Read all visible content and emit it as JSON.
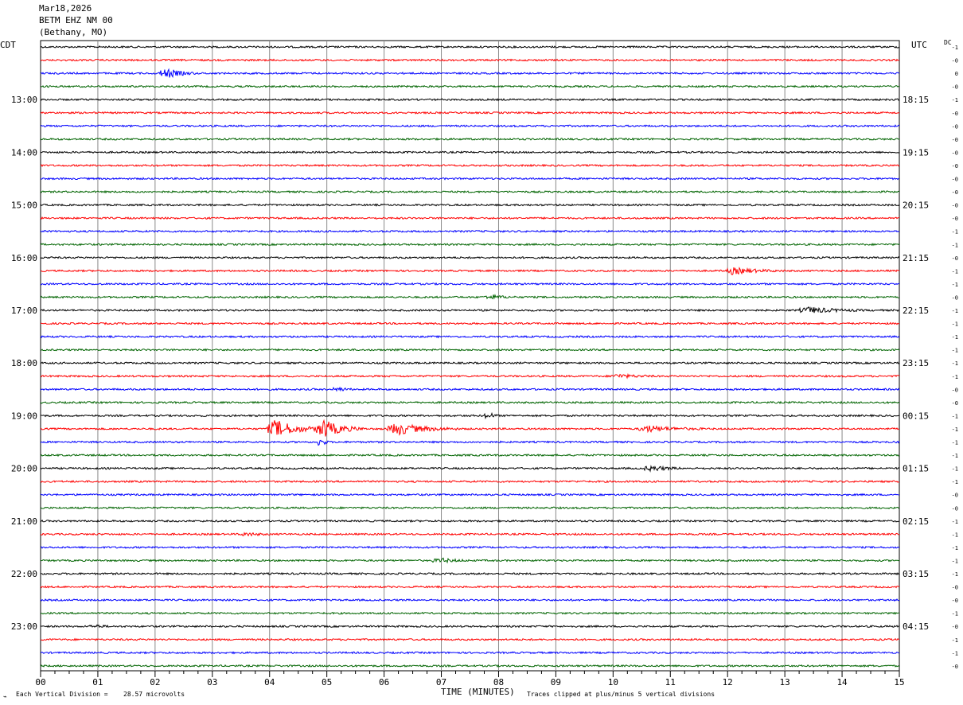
{
  "header": {
    "date": "Mar18,2026",
    "station": "BETM EHZ NM 00",
    "location": "(Bethany, MO)"
  },
  "left_tz": "CDT",
  "right_tz": "UTC",
  "dc_label": "DC",
  "chart_data": {
    "type": "line",
    "title": "",
    "xlabel": "TIME (MINUTES)",
    "ylabel": "",
    "xlim": [
      0,
      15
    ],
    "x_ticks": [
      "00",
      "01",
      "02",
      "03",
      "04",
      "05",
      "06",
      "07",
      "08",
      "09",
      "10",
      "11",
      "12",
      "13",
      "14",
      "15"
    ],
    "trace_minutes": 15,
    "trace_count": 48,
    "trace_colors": [
      "#000000",
      "#ff0000",
      "#0000ff",
      "#006400"
    ],
    "grid_vertical": true,
    "left_hour_labels": [
      "13:00",
      "14:00",
      "15:00",
      "16:00",
      "17:00",
      "18:00",
      "19:00",
      "20:00",
      "21:00",
      "22:00",
      "23:00"
    ],
    "right_hour_labels": [
      "18:15",
      "19:15",
      "20:15",
      "21:15",
      "22:15",
      "23:15",
      "00:15",
      "01:15",
      "02:15",
      "03:15",
      "04:15"
    ],
    "hour_label_first_trace": 4,
    "hour_label_every": 4,
    "dc_offsets": [
      "-1",
      "-0",
      "0",
      "-0",
      "-1",
      "-0",
      "-0",
      "-0",
      "-0",
      "-0",
      "-0",
      "-0",
      "-0",
      "-0",
      "-1",
      "-1",
      "-0",
      "-1",
      "-1",
      "-0",
      "-1",
      "-1",
      "-1",
      "-1",
      "-1",
      "-1",
      "-0",
      "-0",
      "-1",
      "-1",
      "-1",
      "-1",
      "-1",
      "-1",
      "-0",
      "-0",
      "-1",
      "-1",
      "-1",
      "-1",
      "-1",
      "-0",
      "-0",
      "-1",
      "-0",
      "-1",
      "-1",
      "-0"
    ],
    "events": [
      {
        "trace": 2,
        "minute": 2.12,
        "duration": 0.6,
        "amplitude": 9
      },
      {
        "trace": 17,
        "minute": 12.0,
        "duration": 1.0,
        "amplitude": 5
      },
      {
        "trace": 19,
        "minute": 7.8,
        "duration": 0.5,
        "amplitude": 4
      },
      {
        "trace": 20,
        "minute": 13.3,
        "duration": 1.1,
        "amplitude": 5
      },
      {
        "trace": 25,
        "minute": 10.0,
        "duration": 0.8,
        "amplitude": 3
      },
      {
        "trace": 26,
        "minute": 5.15,
        "duration": 0.3,
        "amplitude": 4
      },
      {
        "trace": 28,
        "minute": 7.8,
        "duration": 0.2,
        "amplitude": 7
      },
      {
        "trace": 29,
        "minute": 4.0,
        "duration": 1.0,
        "amplitude": 15
      },
      {
        "trace": 29,
        "minute": 4.85,
        "duration": 0.8,
        "amplitude": 16
      },
      {
        "trace": 29,
        "minute": 6.1,
        "duration": 1.2,
        "amplitude": 10
      },
      {
        "trace": 29,
        "minute": 10.5,
        "duration": 1.1,
        "amplitude": 5
      },
      {
        "trace": 30,
        "minute": 4.9,
        "duration": 0.12,
        "amplitude": 12
      },
      {
        "trace": 32,
        "minute": 10.6,
        "duration": 0.6,
        "amplitude": 5
      },
      {
        "trace": 37,
        "minute": 3.5,
        "duration": 0.5,
        "amplitude": 3
      },
      {
        "trace": 39,
        "minute": 6.9,
        "duration": 0.6,
        "amplitude": 4
      },
      {
        "trace": 44,
        "minute": 0.9,
        "duration": 0.3,
        "amplitude": 3
      }
    ]
  },
  "footer": {
    "scale_label": "Each Vertical Division =",
    "scale_value": "28.57 microvolts",
    "clip_note": "Traces clipped at plus/minus 5 vertical divisions"
  }
}
